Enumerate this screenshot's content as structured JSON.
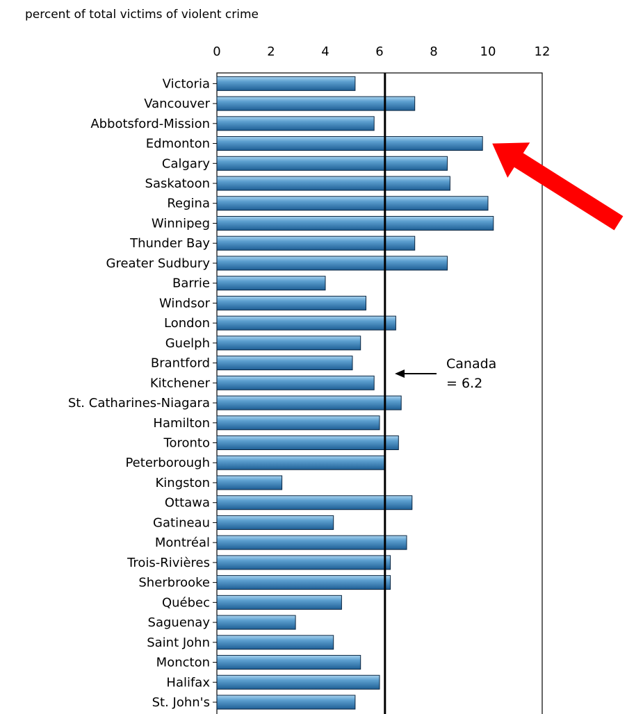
{
  "chart_data": {
    "type": "bar",
    "orientation": "horizontal",
    "title": "percent of total victims of violent crime",
    "categories": [
      "Victoria",
      "Vancouver",
      "Abbotsford-Mission",
      "Edmonton",
      "Calgary",
      "Saskatoon",
      "Regina",
      "Winnipeg",
      "Thunder Bay",
      "Greater Sudbury",
      "Barrie",
      "Windsor",
      "London",
      "Guelph",
      "Brantford",
      "Kitchener",
      "St. Catharines-Niagara",
      "Hamilton",
      "Toronto",
      "Peterborough",
      "Kingston",
      "Ottawa",
      "Gatineau",
      "Montréal",
      "Trois-Rivières",
      "Sherbrooke",
      "Québec",
      "Saguenay",
      "Saint John",
      "Moncton",
      "Halifax",
      "St. John's"
    ],
    "values": [
      5.1,
      7.3,
      5.8,
      9.8,
      8.5,
      8.6,
      10.0,
      10.2,
      7.3,
      8.5,
      4.0,
      5.5,
      6.6,
      5.3,
      5.0,
      5.8,
      6.8,
      6.0,
      6.7,
      6.2,
      2.4,
      7.2,
      4.3,
      7.0,
      6.4,
      6.4,
      4.6,
      2.9,
      4.3,
      5.3,
      6.0,
      5.1
    ],
    "xlim": [
      0,
      12
    ],
    "xticks": [
      0,
      2,
      4,
      6,
      8,
      10,
      12
    ],
    "xtick_labels": [
      "0",
      "2",
      "4",
      "6",
      "8",
      "10",
      "12"
    ],
    "xticks_position": "top",
    "reference_line": {
      "value": 6.2
    },
    "annotation": {
      "line1": "Canada",
      "line2": "= 6.2"
    },
    "highlight_arrow": {
      "target_category": "Edmonton",
      "color": "#ff0000"
    },
    "grid": false,
    "legend": "none",
    "bar_color": "#4a90c4",
    "bar_edge_color": "#0a2540"
  }
}
